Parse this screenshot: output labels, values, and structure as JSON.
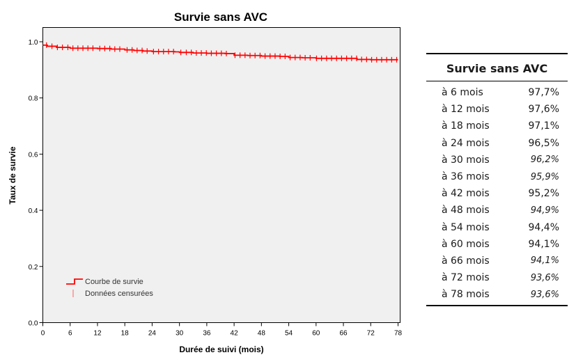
{
  "chart_data": {
    "type": "line",
    "title": "Survie sans AVC",
    "xlabel": "Durée de suivi (mois)",
    "ylabel": "Taux de survie",
    "xlim": [
      0,
      78
    ],
    "ylim": [
      0,
      1.0
    ],
    "xticks": [
      "0",
      "6",
      "12",
      "18",
      "24",
      "30",
      "36",
      "42",
      "48",
      "54",
      "60",
      "66",
      "72",
      "78"
    ],
    "yticks": [
      "0.0",
      "0.2",
      "0.4",
      "0.6",
      "0.8",
      "1.0"
    ],
    "legend_position": "bottom-left",
    "grid": false,
    "series": [
      {
        "name": "Courbe de survie",
        "color": "#ff0000",
        "x": [
          0,
          1,
          3,
          6,
          10,
          12,
          15,
          18,
          20,
          22,
          24,
          27,
          29,
          30,
          33,
          36,
          40,
          42,
          45,
          48,
          52,
          54,
          57,
          60,
          63,
          66,
          69,
          72,
          75,
          78
        ],
        "y": [
          0.988,
          0.984,
          0.98,
          0.977,
          0.977,
          0.976,
          0.974,
          0.971,
          0.969,
          0.967,
          0.965,
          0.965,
          0.964,
          0.962,
          0.96,
          0.959,
          0.958,
          0.952,
          0.951,
          0.949,
          0.948,
          0.944,
          0.943,
          0.941,
          0.941,
          0.941,
          0.937,
          0.936,
          0.936,
          0.936
        ]
      }
    ],
    "censored": {
      "name": "Données censurées",
      "color": "#ff0000",
      "x": [
        0.8,
        2,
        3.2,
        4.3,
        5.5,
        6.6,
        7.7,
        8.8,
        9.9,
        11,
        12.5,
        13.6,
        14.7,
        15.8,
        16.9,
        18.5,
        19.6,
        20.7,
        21.8,
        22.9,
        24.3,
        25.4,
        26.5,
        27.6,
        28.7,
        30.3,
        31.5,
        32.6,
        33.7,
        34.8,
        35.9,
        37,
        38.1,
        39.2,
        40.3,
        42.2,
        43.3,
        44.4,
        45.5,
        46.6,
        47.7,
        48.8,
        49.9,
        51,
        52.1,
        53.2,
        54.3,
        55.4,
        56.5,
        57.6,
        58.7,
        60.1,
        61.2,
        62.3,
        63.4,
        64.5,
        65.6,
        66.7,
        67.8,
        68.9,
        70,
        71.1,
        72.2,
        73.3,
        74.4,
        75.5,
        76.6,
        77.7
      ]
    }
  },
  "table": {
    "title": "Survie sans AVC",
    "rows": [
      {
        "label": "à 6 mois",
        "value": "97,7%",
        "italic": false
      },
      {
        "label": "à 12 mois",
        "value": "97,6%",
        "italic": false
      },
      {
        "label": "à 18 mois",
        "value": "97,1%",
        "italic": false
      },
      {
        "label": "à 24 mois",
        "value": "96,5%",
        "italic": false
      },
      {
        "label": "à 30 mois",
        "value": "96,2%",
        "italic": true
      },
      {
        "label": "à 36 mois",
        "value": "95,9%",
        "italic": true
      },
      {
        "label": "à 42 mois",
        "value": "95,2%",
        "italic": false
      },
      {
        "label": "à 48 mois",
        "value": "94,9%",
        "italic": true
      },
      {
        "label": "à 54 mois",
        "value": "94,4%",
        "italic": false
      },
      {
        "label": "à 60 mois",
        "value": "94,1%",
        "italic": false
      },
      {
        "label": "à 66 mois",
        "value": "94,1%",
        "italic": true
      },
      {
        "label": "à 72 mois",
        "value": "93,6%",
        "italic": true
      },
      {
        "label": "à 78 mois",
        "value": "93,6%",
        "italic": true
      }
    ]
  }
}
